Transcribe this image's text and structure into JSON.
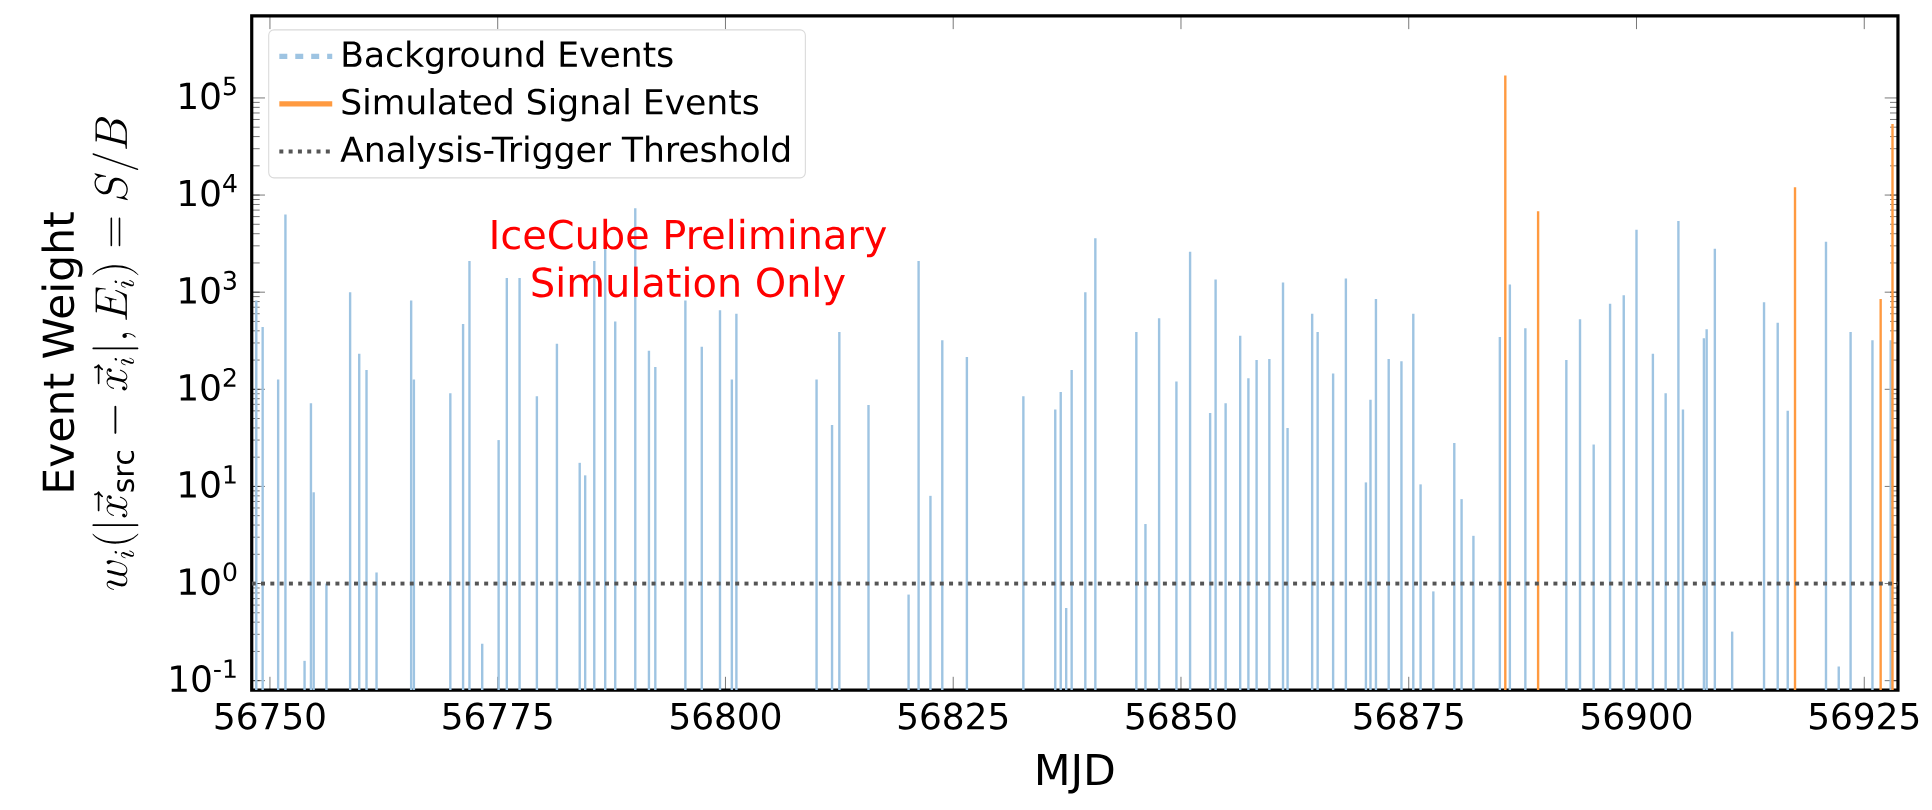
{
  "chart_data": {
    "type": "bar",
    "log": "y",
    "xlabel": "MJD",
    "ylabel": "\\begin{array}{c}\\text{Event Weight}\\\\ w_i(|\\vec{x}_{\\mathrm{src}}-\\vec{x}_i|,E_i)=S/B\\end{array}",
    "xlim": [
      56748,
      56928.7
    ],
    "ylim": [
      0.08,
      700000
    ],
    "xticks": [
      56750,
      56775,
      56800,
      56825,
      56850,
      56875,
      56900,
      56925
    ],
    "yticks": [
      {
        "value": 0.1,
        "label": "10$^{-1}$"
      },
      {
        "value": 1,
        "label": "10$^{0}$"
      },
      {
        "value": 10,
        "label": "10$^{1}$"
      },
      {
        "value": 100,
        "label": "10$^{2}$"
      },
      {
        "value": 1000,
        "label": "10$^{3}$"
      },
      {
        "value": 10000,
        "label": "10$^{4}$"
      },
      {
        "value": 100000,
        "label": "10$^{5}$"
      }
    ],
    "legend": "top left",
    "series": [
      {
        "name": "Background Events",
        "color": "#9ec4e2",
        "line_style": "dashed",
        "x": [
          56748.5,
          56749.2,
          56750.9,
          56751.7,
          56753.8,
          56754.5,
          56754.8,
          56756.2,
          56758.8,
          56759.8,
          56760.6,
          56761.7,
          56765.5,
          56765.8,
          56769.8,
          56771.2,
          56771.9,
          56773.3,
          56775.1,
          56776.0,
          56777.4,
          56779.3,
          56781.5,
          56784.0,
          56784.6,
          56785.6,
          56786.8,
          56787.9,
          56790.1,
          56791.6,
          56792.3,
          56795.6,
          56797.4,
          56799.4,
          56800.7,
          56801.2,
          56810.0,
          56811.7,
          56812.5,
          56815.7,
          56820.1,
          56821.2,
          56822.5,
          56823.8,
          56826.5,
          56832.7,
          56836.2,
          56836.8,
          56837.4,
          56838.0,
          56839.5,
          56840.6,
          56845.1,
          56846.1,
          56847.6,
          56849.5,
          56851.0,
          56853.2,
          56853.8,
          56854.9,
          56856.5,
          56857.4,
          56858.3,
          56859.7,
          56861.2,
          56861.7,
          56864.4,
          56865.0,
          56866.7,
          56868.1,
          56870.3,
          56870.8,
          56871.4,
          56872.8,
          56874.2,
          56875.5,
          56876.3,
          56877.7,
          56880.0,
          56880.8,
          56882.1,
          56885.0,
          56886.1,
          56887.8,
          56892.3,
          56893.8,
          56895.3,
          56897.1,
          56898.6,
          56900.0,
          56901.8,
          56903.2,
          56904.6,
          56905.1,
          56907.4,
          56907.7,
          56908.6,
          56910.5,
          56914.0,
          56915.5,
          56916.6,
          56920.8,
          56922.2,
          56923.5,
          56925.9,
          56927.9
        ],
        "values": [
          820,
          437,
          126,
          6300,
          0.16,
          72,
          8.7,
          1,
          1000,
          233,
          158,
          1.3,
          820,
          126,
          91,
          470,
          2100,
          0.24,
          30,
          1400,
          1400,
          85,
          295,
          17.5,
          13,
          2100,
          2800,
          500,
          7300,
          250,
          170,
          820,
          275,
          650,
          126,
          600,
          126,
          43,
          390,
          69,
          0.77,
          2100,
          8,
          320,
          215,
          85,
          62,
          94,
          0.56,
          158,
          1000,
          3600,
          390,
          4.1,
          540,
          120,
          2600,
          57,
          1350,
          72,
          355,
          130,
          200,
          205,
          1260,
          40,
          600,
          390,
          145,
          1380,
          11,
          78,
          850,
          205,
          195,
          600,
          10.5,
          0.83,
          28,
          7.4,
          3.1,
          345,
          1200,
          425,
          200,
          525,
          27,
          760,
          930,
          4400,
          233,
          91,
          5400,
          62,
          335,
          415,
          2800,
          0.32,
          790,
          485,
          60,
          3300,
          0.14,
          390,
          320,
          320
        ]
      },
      {
        "name": "Simulated Signal Events",
        "color": "#ff9a40",
        "line_style": "solid",
        "x": [
          56885.6,
          56889.2,
          56917.4,
          56926.8,
          56928.1
        ],
        "values": [
          170000,
          6800,
          12000,
          850,
          54000
        ]
      }
    ],
    "ref_lines": [
      {
        "axis": "y",
        "value": 1,
        "label": "Analysis-Trigger Threshold",
        "color": "#555555",
        "line_style": "dotted"
      }
    ],
    "annotations": [
      "IceCube Preliminary",
      "Simulation Only"
    ]
  }
}
